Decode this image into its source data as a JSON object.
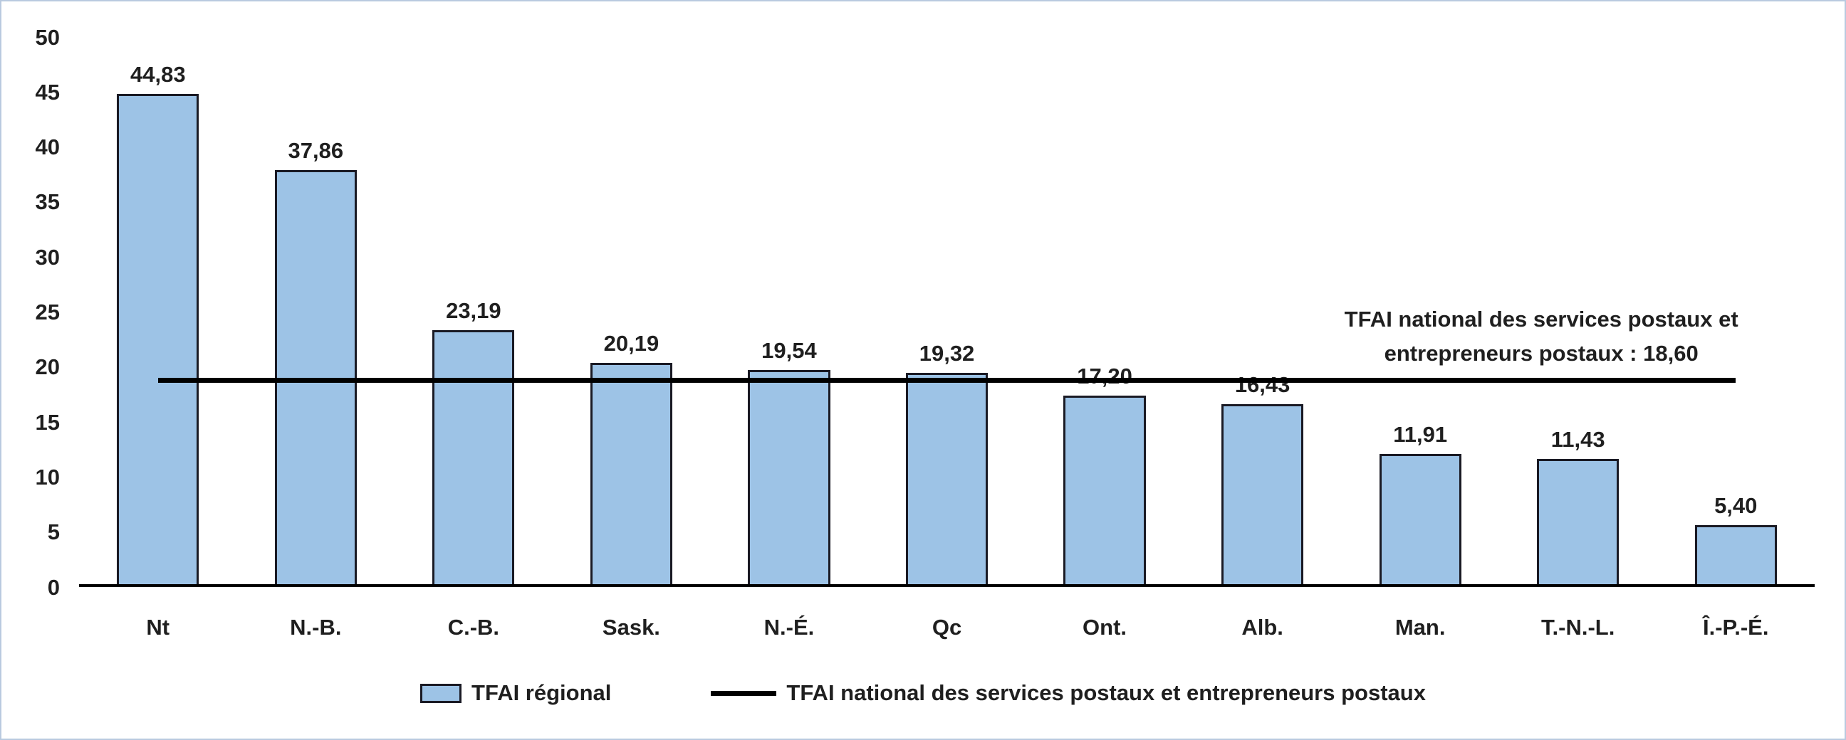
{
  "chart_data": {
    "type": "bar",
    "title": "",
    "xlabel": "",
    "ylabel": "",
    "categories": [
      "Nt",
      "N.-B.",
      "C.-B.",
      "Sask.",
      "N.-É.",
      "Qc",
      "Ont.",
      "Alb.",
      "Man.",
      "T.-N.-L.",
      "Î.-P.-É."
    ],
    "values": [
      44.83,
      37.86,
      23.19,
      20.19,
      19.54,
      19.32,
      17.2,
      16.43,
      11.91,
      11.43,
      5.4
    ],
    "value_labels": [
      "44,83",
      "37,86",
      "23,19",
      "20,19",
      "19,54",
      "19,32",
      "17,20",
      "16,43",
      "11,91",
      "11,43",
      "5,40"
    ],
    "ylim": [
      0,
      50
    ],
    "yticks": [
      0,
      5,
      10,
      15,
      20,
      25,
      30,
      35,
      40,
      45,
      50
    ],
    "grid": false,
    "legend_position": "bottom",
    "reference_line": {
      "value": 18.6,
      "label": "TFAI national des services postaux et entrepreneurs postaux : 18,60"
    },
    "legend": {
      "items": [
        "TFAI régional",
        "TFAI national des services postaux et entrepreneurs postaux"
      ]
    },
    "colors": {
      "bar_fill": "#9DC3E6",
      "bar_border": "#1A1A24",
      "line": "#000000",
      "text": "#1F1F1F",
      "frame_border": "#B9CADF"
    }
  }
}
